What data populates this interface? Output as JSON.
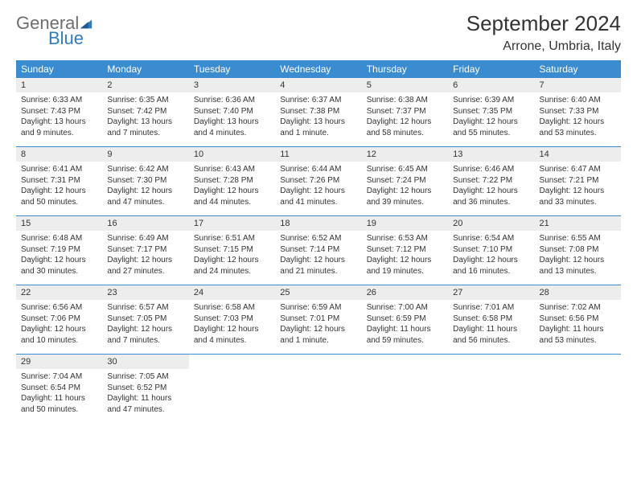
{
  "logo": {
    "text1": "General",
    "text2": "Blue",
    "tri_color": "#2e7cc0",
    "gray": "#6e6e6e"
  },
  "title": "September 2024",
  "location": "Arrone, Umbria, Italy",
  "dow_bg": "#3a8bd0",
  "dow_fg": "#ffffff",
  "daynum_bg": "#ededed",
  "days_of_week": [
    "Sunday",
    "Monday",
    "Tuesday",
    "Wednesday",
    "Thursday",
    "Friday",
    "Saturday"
  ],
  "weeks": [
    [
      {
        "n": "1",
        "sr": "Sunrise: 6:33 AM",
        "ss": "Sunset: 7:43 PM",
        "d1": "Daylight: 13 hours",
        "d2": "and 9 minutes."
      },
      {
        "n": "2",
        "sr": "Sunrise: 6:35 AM",
        "ss": "Sunset: 7:42 PM",
        "d1": "Daylight: 13 hours",
        "d2": "and 7 minutes."
      },
      {
        "n": "3",
        "sr": "Sunrise: 6:36 AM",
        "ss": "Sunset: 7:40 PM",
        "d1": "Daylight: 13 hours",
        "d2": "and 4 minutes."
      },
      {
        "n": "4",
        "sr": "Sunrise: 6:37 AM",
        "ss": "Sunset: 7:38 PM",
        "d1": "Daylight: 13 hours",
        "d2": "and 1 minute."
      },
      {
        "n": "5",
        "sr": "Sunrise: 6:38 AM",
        "ss": "Sunset: 7:37 PM",
        "d1": "Daylight: 12 hours",
        "d2": "and 58 minutes."
      },
      {
        "n": "6",
        "sr": "Sunrise: 6:39 AM",
        "ss": "Sunset: 7:35 PM",
        "d1": "Daylight: 12 hours",
        "d2": "and 55 minutes."
      },
      {
        "n": "7",
        "sr": "Sunrise: 6:40 AM",
        "ss": "Sunset: 7:33 PM",
        "d1": "Daylight: 12 hours",
        "d2": "and 53 minutes."
      }
    ],
    [
      {
        "n": "8",
        "sr": "Sunrise: 6:41 AM",
        "ss": "Sunset: 7:31 PM",
        "d1": "Daylight: 12 hours",
        "d2": "and 50 minutes."
      },
      {
        "n": "9",
        "sr": "Sunrise: 6:42 AM",
        "ss": "Sunset: 7:30 PM",
        "d1": "Daylight: 12 hours",
        "d2": "and 47 minutes."
      },
      {
        "n": "10",
        "sr": "Sunrise: 6:43 AM",
        "ss": "Sunset: 7:28 PM",
        "d1": "Daylight: 12 hours",
        "d2": "and 44 minutes."
      },
      {
        "n": "11",
        "sr": "Sunrise: 6:44 AM",
        "ss": "Sunset: 7:26 PM",
        "d1": "Daylight: 12 hours",
        "d2": "and 41 minutes."
      },
      {
        "n": "12",
        "sr": "Sunrise: 6:45 AM",
        "ss": "Sunset: 7:24 PM",
        "d1": "Daylight: 12 hours",
        "d2": "and 39 minutes."
      },
      {
        "n": "13",
        "sr": "Sunrise: 6:46 AM",
        "ss": "Sunset: 7:22 PM",
        "d1": "Daylight: 12 hours",
        "d2": "and 36 minutes."
      },
      {
        "n": "14",
        "sr": "Sunrise: 6:47 AM",
        "ss": "Sunset: 7:21 PM",
        "d1": "Daylight: 12 hours",
        "d2": "and 33 minutes."
      }
    ],
    [
      {
        "n": "15",
        "sr": "Sunrise: 6:48 AM",
        "ss": "Sunset: 7:19 PM",
        "d1": "Daylight: 12 hours",
        "d2": "and 30 minutes."
      },
      {
        "n": "16",
        "sr": "Sunrise: 6:49 AM",
        "ss": "Sunset: 7:17 PM",
        "d1": "Daylight: 12 hours",
        "d2": "and 27 minutes."
      },
      {
        "n": "17",
        "sr": "Sunrise: 6:51 AM",
        "ss": "Sunset: 7:15 PM",
        "d1": "Daylight: 12 hours",
        "d2": "and 24 minutes."
      },
      {
        "n": "18",
        "sr": "Sunrise: 6:52 AM",
        "ss": "Sunset: 7:14 PM",
        "d1": "Daylight: 12 hours",
        "d2": "and 21 minutes."
      },
      {
        "n": "19",
        "sr": "Sunrise: 6:53 AM",
        "ss": "Sunset: 7:12 PM",
        "d1": "Daylight: 12 hours",
        "d2": "and 19 minutes."
      },
      {
        "n": "20",
        "sr": "Sunrise: 6:54 AM",
        "ss": "Sunset: 7:10 PM",
        "d1": "Daylight: 12 hours",
        "d2": "and 16 minutes."
      },
      {
        "n": "21",
        "sr": "Sunrise: 6:55 AM",
        "ss": "Sunset: 7:08 PM",
        "d1": "Daylight: 12 hours",
        "d2": "and 13 minutes."
      }
    ],
    [
      {
        "n": "22",
        "sr": "Sunrise: 6:56 AM",
        "ss": "Sunset: 7:06 PM",
        "d1": "Daylight: 12 hours",
        "d2": "and 10 minutes."
      },
      {
        "n": "23",
        "sr": "Sunrise: 6:57 AM",
        "ss": "Sunset: 7:05 PM",
        "d1": "Daylight: 12 hours",
        "d2": "and 7 minutes."
      },
      {
        "n": "24",
        "sr": "Sunrise: 6:58 AM",
        "ss": "Sunset: 7:03 PM",
        "d1": "Daylight: 12 hours",
        "d2": "and 4 minutes."
      },
      {
        "n": "25",
        "sr": "Sunrise: 6:59 AM",
        "ss": "Sunset: 7:01 PM",
        "d1": "Daylight: 12 hours",
        "d2": "and 1 minute."
      },
      {
        "n": "26",
        "sr": "Sunrise: 7:00 AM",
        "ss": "Sunset: 6:59 PM",
        "d1": "Daylight: 11 hours",
        "d2": "and 59 minutes."
      },
      {
        "n": "27",
        "sr": "Sunrise: 7:01 AM",
        "ss": "Sunset: 6:58 PM",
        "d1": "Daylight: 11 hours",
        "d2": "and 56 minutes."
      },
      {
        "n": "28",
        "sr": "Sunrise: 7:02 AM",
        "ss": "Sunset: 6:56 PM",
        "d1": "Daylight: 11 hours",
        "d2": "and 53 minutes."
      }
    ],
    [
      {
        "n": "29",
        "sr": "Sunrise: 7:04 AM",
        "ss": "Sunset: 6:54 PM",
        "d1": "Daylight: 11 hours",
        "d2": "and 50 minutes."
      },
      {
        "n": "30",
        "sr": "Sunrise: 7:05 AM",
        "ss": "Sunset: 6:52 PM",
        "d1": "Daylight: 11 hours",
        "d2": "and 47 minutes."
      },
      null,
      null,
      null,
      null,
      null
    ]
  ]
}
